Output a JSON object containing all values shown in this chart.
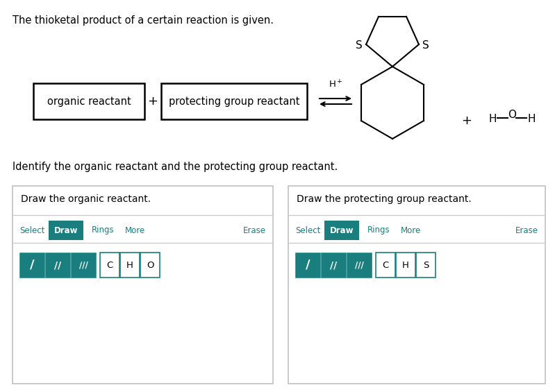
{
  "bg_color": "#ffffff",
  "title_text": "The thioketal product of a certain reaction is given.",
  "identify_text": "Identify the organic reactant and the protecting group reactant.",
  "box1_text": "organic reactant",
  "box2_text": "protecting group reactant",
  "panel1_title": "Draw the organic reactant.",
  "panel2_title": "Draw the protecting group reactant.",
  "teal": "#1a7e7e",
  "black": "#000000",
  "gray_border": "#bbbbbb",
  "light_gray_line": "#cccccc"
}
